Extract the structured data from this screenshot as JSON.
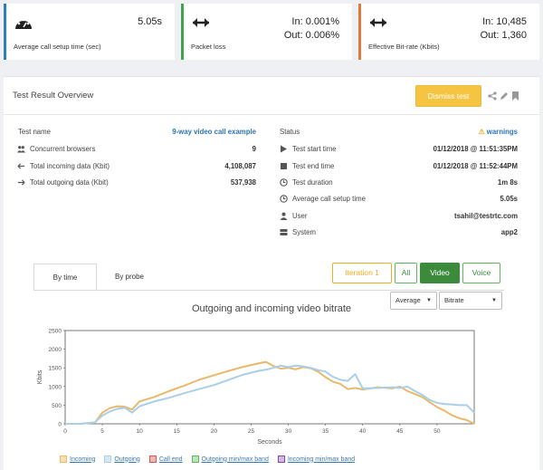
{
  "cards": [
    {
      "value_lines": [
        "5.05s"
      ],
      "label": "Average call setup time (sec)",
      "accent": "#2a7fc1",
      "icon": "speedometer-icon"
    },
    {
      "value_lines": [
        "In: 0.001%",
        "Out: 0.006%"
      ],
      "label": "Packet loss",
      "accent": "#3fa650",
      "icon": "arrows-horizontal-icon"
    },
    {
      "value_lines": [
        "In: 10,485",
        "Out: 1,360"
      ],
      "label": "Effective Bit-rate (Kbits)",
      "accent": "#e0793a",
      "icon": "arrows-horizontal-icon"
    }
  ],
  "overview": {
    "title": "Test Result Overview",
    "dismiss_label": "Dismiss test"
  },
  "left_rows": [
    {
      "label": "Test name",
      "value": "9-way video call example",
      "icon": ""
    },
    {
      "label": "Concurrent browsers",
      "value": "9",
      "icon": "users-icon"
    },
    {
      "label": "Total incoming data (Kbit)",
      "value": "4,108,087",
      "icon": "arrow-left-icon"
    },
    {
      "label": "Total outgoing data (Kbit)",
      "value": "537,938",
      "icon": "arrow-right-icon"
    }
  ],
  "right_rows": [
    {
      "label": "Status",
      "value": "warnings",
      "icon": ""
    },
    {
      "label": "Test start time",
      "value": "01/12/2018 @ 11:51:35PM",
      "icon": "play-icon"
    },
    {
      "label": "Test end time",
      "value": "01/12/2018 @ 11:52:44PM",
      "icon": "stop-icon"
    },
    {
      "label": "Test duration",
      "value": "1m 8s",
      "icon": "clock-icon"
    },
    {
      "label": "Average call setup time",
      "value": "5.05s",
      "icon": "clock-icon"
    },
    {
      "label": "User",
      "value": "tsahil@testrtc.com",
      "icon": "user-icon"
    },
    {
      "label": "System",
      "value": "app2",
      "icon": "server-icon"
    }
  ],
  "tabs": [
    "By time",
    "By probe"
  ],
  "filters": [
    "Iteration 1",
    "All",
    "Video",
    "Voice"
  ],
  "selects": {
    "aggregate": "Average",
    "metric": "Bitrate"
  },
  "colors": {
    "incoming": "#e8b96a",
    "outgoing": "#a9cfe8",
    "active_filter": "#3c8a3c",
    "warning": "#f0ad1e",
    "link": "#2a74b8"
  },
  "legend": [
    {
      "label": "Incoming",
      "color": "#e8b96a"
    },
    {
      "label": "Outgoing",
      "color": "#a9cfe8"
    },
    {
      "label": "Call end",
      "color": "#d9534f"
    },
    {
      "label": "Outgoing min/max band",
      "color": "#5cb85c"
    },
    {
      "label": "Incoming min/max band",
      "color": "#8e44ad"
    }
  ],
  "chart_data": {
    "type": "line",
    "title": "Outgoing and incoming video bitrate",
    "xlabel": "Seconds",
    "ylabel": "Kbits",
    "xlim": [
      0,
      55
    ],
    "ylim": [
      0,
      2500
    ],
    "xticks": [
      0,
      5,
      10,
      15,
      20,
      25,
      30,
      35,
      40,
      45,
      50
    ],
    "yticks": [
      0,
      500,
      1000,
      1500,
      2000,
      2500
    ],
    "grid": false,
    "series": [
      {
        "name": "Incoming",
        "x": [
          0,
          2,
          4,
          5,
          6,
          7,
          8,
          9,
          10,
          12,
          14,
          16,
          18,
          20,
          22,
          24,
          26,
          27,
          28,
          29,
          30,
          31,
          32,
          33,
          34,
          35,
          36,
          37,
          38,
          39,
          40,
          42,
          44,
          45,
          46,
          47,
          48,
          49,
          50,
          51,
          52,
          53,
          54,
          55
        ],
        "values": [
          0,
          0,
          30,
          300,
          420,
          470,
          460,
          380,
          600,
          720,
          880,
          1020,
          1180,
          1300,
          1420,
          1530,
          1620,
          1660,
          1550,
          1480,
          1500,
          1460,
          1520,
          1490,
          1400,
          1250,
          1130,
          1070,
          930,
          960,
          920,
          980,
          950,
          1000,
          880,
          800,
          720,
          580,
          450,
          350,
          230,
          150,
          100,
          0
        ]
      },
      {
        "name": "Outgoing",
        "x": [
          0,
          2,
          4,
          5,
          6,
          7,
          8,
          9,
          10,
          12,
          14,
          16,
          18,
          20,
          22,
          24,
          26,
          27,
          28,
          29,
          30,
          31,
          32,
          33,
          34,
          35,
          36,
          37,
          38,
          39,
          40,
          42,
          44,
          45,
          46,
          47,
          48,
          49,
          50,
          51,
          52,
          53,
          54,
          55
        ],
        "values": [
          0,
          0,
          40,
          220,
          330,
          400,
          430,
          300,
          470,
          600,
          700,
          820,
          930,
          1040,
          1180,
          1320,
          1420,
          1450,
          1500,
          1560,
          1520,
          1560,
          1540,
          1500,
          1440,
          1400,
          1260,
          1180,
          1150,
          1330,
          950,
          960,
          980,
          960,
          1000,
          880,
          780,
          640,
          560,
          530,
          520,
          500,
          500,
          300
        ]
      }
    ]
  }
}
